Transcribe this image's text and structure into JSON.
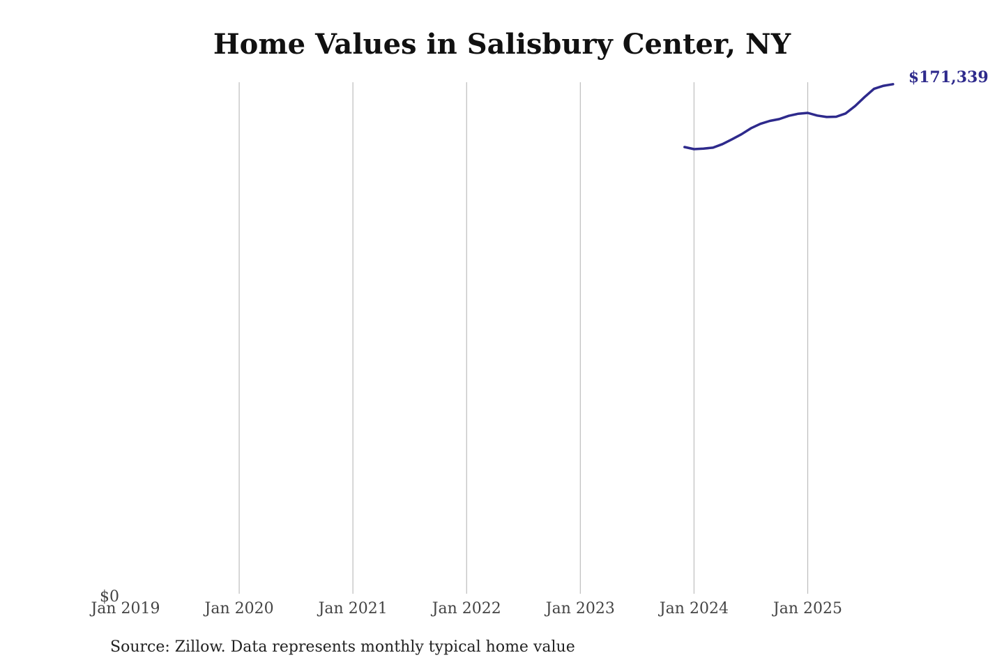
{
  "chart_data": {
    "type": "line",
    "title": "Home Values in Salisbury Center, NY",
    "xlabel": "",
    "ylabel": "",
    "x_ticks": [
      "Jan 2019",
      "Jan 2020",
      "Jan 2021",
      "Jan 2022",
      "Jan 2023",
      "Jan 2024",
      "Jan 2025"
    ],
    "y_ticks": [
      {
        "value": 0,
        "label": "$0"
      }
    ],
    "xlim": [
      "2019-01",
      "2025-12"
    ],
    "ylim": [
      0,
      172000
    ],
    "grid": "vertical",
    "legend": "none",
    "line_color": "#2e2a8c",
    "series": [
      {
        "x": [
          "2023-12",
          "2024-01",
          "2024-02",
          "2024-03",
          "2024-04",
          "2024-05",
          "2024-06",
          "2024-07",
          "2024-08",
          "2024-09",
          "2024-10",
          "2024-11",
          "2024-12",
          "2025-01",
          "2025-02",
          "2025-03",
          "2025-04",
          "2025-05",
          "2025-06",
          "2025-07",
          "2025-08",
          "2025-09",
          "2025-10"
        ],
        "values": [
          150200,
          149500,
          149700,
          150000,
          151200,
          152800,
          154500,
          156500,
          158000,
          159000,
          159600,
          160700,
          161400,
          161700,
          160800,
          160300,
          160400,
          161500,
          164000,
          167000,
          169800,
          170800,
          171339
        ]
      }
    ],
    "end_label": "$171,339"
  },
  "source": "Source: Zillow. Data represents monthly typical home value"
}
